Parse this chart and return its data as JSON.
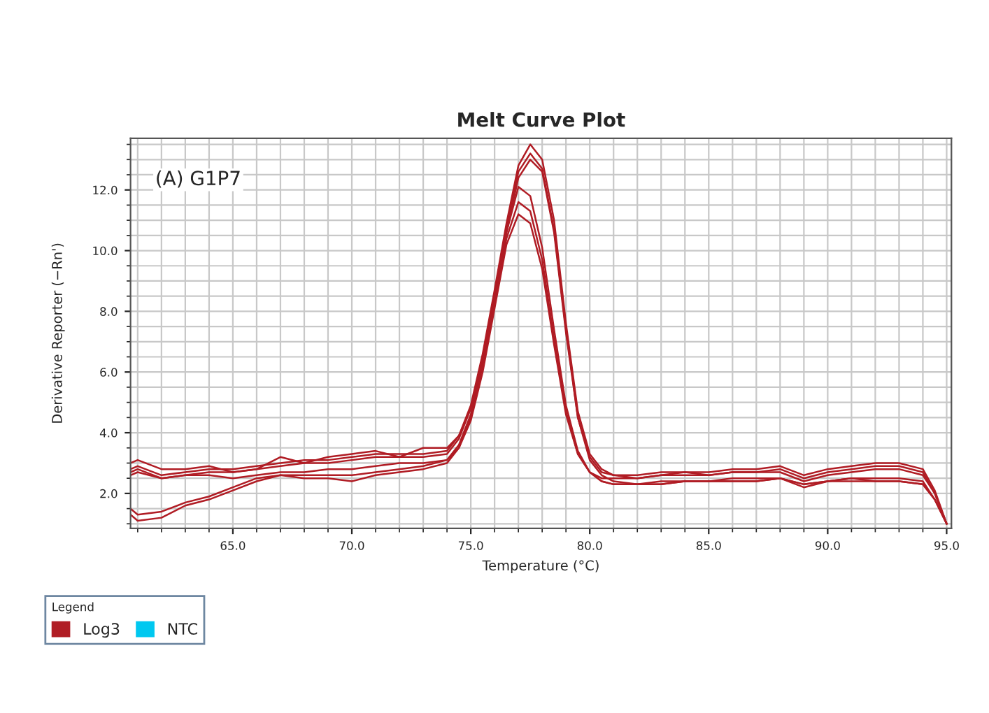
{
  "chart_data": {
    "type": "line",
    "title": "Melt Curve Plot",
    "xlabel": "Temperature (°C)",
    "ylabel": "Derivative Reporter (−Rn')",
    "legend_title": "Legend",
    "annotations": [
      "(A) G1P7"
    ],
    "x": [
      60.7,
      61,
      62,
      63,
      64,
      65,
      66,
      67,
      68,
      69,
      70,
      71,
      72,
      73,
      74,
      74.5,
      75,
      75.5,
      76,
      76.5,
      77,
      77.5,
      78,
      78.5,
      79,
      79.5,
      80,
      80.5,
      81,
      82,
      83,
      84,
      85,
      86,
      87,
      88,
      89,
      90,
      91,
      92,
      93,
      94,
      94.5,
      95
    ],
    "series": [
      {
        "name": "Log3",
        "color": "#b01c24",
        "values": [
          2.8,
          2.9,
          2.6,
          2.7,
          2.8,
          2.8,
          2.9,
          3.0,
          3.1,
          3.1,
          3.2,
          3.3,
          3.3,
          3.3,
          3.4,
          3.9,
          4.9,
          6.6,
          8.7,
          10.9,
          12.8,
          13.5,
          13.0,
          11.0,
          7.6,
          4.7,
          3.3,
          2.8,
          2.6,
          2.5,
          2.6,
          2.7,
          2.6,
          2.7,
          2.7,
          2.8,
          2.5,
          2.7,
          2.8,
          2.9,
          2.9,
          2.7,
          2.0,
          1.0
        ]
      },
      {
        "color": "#b01c24",
        "values": [
          2.6,
          2.7,
          2.5,
          2.6,
          2.7,
          2.7,
          2.8,
          2.9,
          3.0,
          3.0,
          3.1,
          3.2,
          3.2,
          3.2,
          3.3,
          3.8,
          4.8,
          6.5,
          8.6,
          10.8,
          12.6,
          13.2,
          12.7,
          10.7,
          7.4,
          4.5,
          3.1,
          2.6,
          2.4,
          2.3,
          2.3,
          2.4,
          2.4,
          2.4,
          2.4,
          2.5,
          2.3,
          2.4,
          2.5,
          2.4,
          2.4,
          2.3,
          1.8,
          1.0
        ]
      },
      {
        "color": "#b01c24",
        "values": [
          3.0,
          3.1,
          2.8,
          2.8,
          2.9,
          2.7,
          2.8,
          3.2,
          3.0,
          3.2,
          3.3,
          3.4,
          3.2,
          3.5,
          3.5,
          3.9,
          4.8,
          6.4,
          8.5,
          10.6,
          12.4,
          13.0,
          12.6,
          10.6,
          7.3,
          4.5,
          3.2,
          2.7,
          2.6,
          2.6,
          2.7,
          2.7,
          2.7,
          2.8,
          2.8,
          2.9,
          2.6,
          2.8,
          2.9,
          3.0,
          3.0,
          2.8,
          2.1,
          1.0
        ]
      },
      {
        "color": "#b01c24",
        "values": [
          1.5,
          1.3,
          1.4,
          1.7,
          1.9,
          2.2,
          2.5,
          2.6,
          2.6,
          2.6,
          2.6,
          2.7,
          2.8,
          2.9,
          3.1,
          3.6,
          4.6,
          6.3,
          8.4,
          10.6,
          12.1,
          11.8,
          10.1,
          7.4,
          4.9,
          3.4,
          2.7,
          2.4,
          2.3,
          2.3,
          2.4,
          2.4,
          2.4,
          2.5,
          2.5,
          2.5,
          2.3,
          2.4,
          2.5,
          2.5,
          2.5,
          2.4,
          1.8,
          1.0
        ]
      },
      {
        "color": "#b01c24",
        "values": [
          1.3,
          1.1,
          1.2,
          1.6,
          1.8,
          2.1,
          2.4,
          2.6,
          2.5,
          2.5,
          2.4,
          2.6,
          2.7,
          2.8,
          3.0,
          3.5,
          4.5,
          6.2,
          8.3,
          10.4,
          11.6,
          11.3,
          9.7,
          7.1,
          4.7,
          3.3,
          2.7,
          2.4,
          2.3,
          2.3,
          2.3,
          2.4,
          2.4,
          2.4,
          2.4,
          2.5,
          2.2,
          2.4,
          2.4,
          2.4,
          2.4,
          2.3,
          1.8,
          1.0
        ]
      },
      {
        "color": "#b01c24",
        "values": [
          2.7,
          2.8,
          2.5,
          2.6,
          2.6,
          2.5,
          2.6,
          2.7,
          2.7,
          2.8,
          2.8,
          2.9,
          3.0,
          3.0,
          3.1,
          3.5,
          4.4,
          6.0,
          8.1,
          10.2,
          11.2,
          10.9,
          9.4,
          6.9,
          4.6,
          3.3,
          2.7,
          2.5,
          2.5,
          2.5,
          2.6,
          2.6,
          2.6,
          2.7,
          2.7,
          2.7,
          2.4,
          2.6,
          2.7,
          2.8,
          2.8,
          2.6,
          2.0,
          1.0
        ]
      },
      {
        "name": "NTC",
        "color": "#00c8f0",
        "values": [
          null,
          null,
          null,
          null,
          null,
          null,
          null,
          null,
          null,
          null,
          null,
          null,
          null,
          null,
          null,
          null,
          null,
          null,
          null,
          null,
          null,
          null,
          null,
          null,
          null,
          null,
          null,
          null,
          null,
          null,
          null,
          null,
          null,
          null,
          null,
          null,
          null,
          null,
          null,
          null,
          null,
          null,
          null,
          null
        ]
      }
    ],
    "xlim": [
      60.7,
      95.2
    ],
    "xticks": [
      {
        "value": 65,
        "label": "65.0"
      },
      {
        "value": 70,
        "label": "70.0"
      },
      {
        "value": 75,
        "label": "75.0"
      },
      {
        "value": 80,
        "label": "80.0"
      },
      {
        "value": 85,
        "label": "85.0"
      },
      {
        "value": 90,
        "label": "90.0"
      },
      {
        "value": 95,
        "label": "95.0"
      }
    ],
    "ylim": [
      0.85,
      13.7
    ],
    "yticks": [
      {
        "value": 2,
        "label": "2.0"
      },
      {
        "value": 4,
        "label": "4.0"
      },
      {
        "value": 6,
        "label": "6.0"
      },
      {
        "value": 8,
        "label": "8.0"
      },
      {
        "value": 10,
        "label": "10.0"
      },
      {
        "value": 12,
        "label": "12.0"
      }
    ],
    "grid": true,
    "legend": "bottom",
    "marker": "none",
    "line_style": "solid"
  }
}
